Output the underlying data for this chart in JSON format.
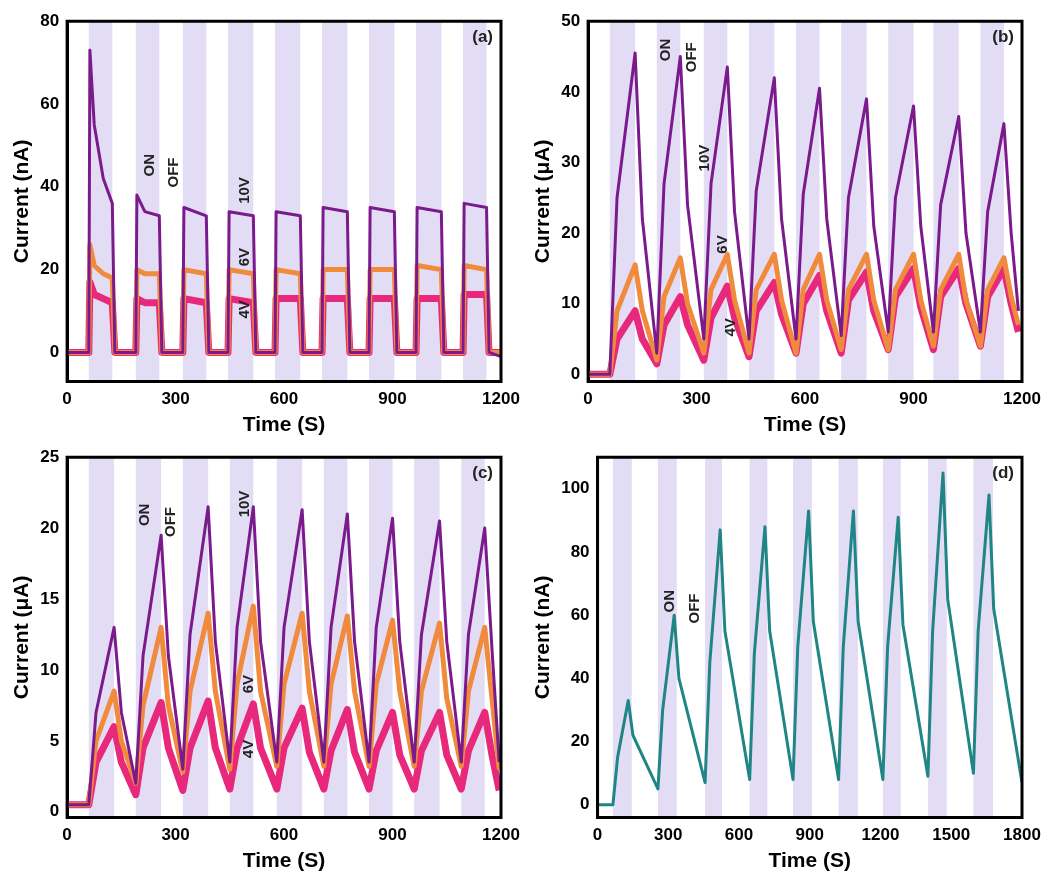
{
  "chart_data": [
    {
      "type": "line",
      "title": "(a)",
      "xlabel": "Time (S)",
      "ylabel": "Current (nA)",
      "xlim": [
        0,
        1200
      ],
      "xticks": [
        0,
        300,
        600,
        900,
        1200
      ],
      "ylim": [
        -7,
        80
      ],
      "yticks": [
        0,
        20,
        40,
        60,
        80
      ],
      "legend": false,
      "x": [
        0,
        60,
        63,
        75,
        100,
        125,
        132,
        190,
        193,
        215,
        255,
        262,
        320,
        323,
        385,
        392,
        445,
        448,
        515,
        522,
        575,
        578,
        645,
        652,
        705,
        708,
        775,
        782,
        835,
        838,
        905,
        912,
        965,
        968,
        1035,
        1042,
        1095,
        1098,
        1160,
        1167,
        1200
      ],
      "series": [
        {
          "name": "10V",
          "color": "#7b1a8c",
          "values": [
            0,
            0,
            73,
            55,
            42,
            36,
            0,
            0,
            38,
            34,
            33,
            0,
            0,
            35,
            33,
            0,
            0,
            34,
            33,
            0,
            0,
            34,
            33,
            0,
            0,
            35,
            34,
            0,
            0,
            35,
            34,
            0,
            0,
            35,
            34,
            0,
            0,
            36,
            35,
            0,
            -1
          ]
        },
        {
          "name": "6V",
          "color": "#f08a3c",
          "values": [
            0,
            0,
            26,
            21,
            19,
            18,
            0,
            0,
            20,
            19,
            19,
            0,
            0,
            20,
            19,
            0,
            0,
            20,
            19,
            0,
            0,
            20,
            19,
            0,
            0,
            20,
            20,
            0,
            0,
            20,
            20,
            0,
            0,
            21,
            20,
            0,
            0,
            21,
            20,
            0,
            0
          ]
        },
        {
          "name": "4V",
          "color": "#e8287a",
          "values": [
            0,
            0,
            17,
            14,
            13,
            12,
            0,
            0,
            13,
            12,
            12,
            0,
            0,
            13,
            12,
            0,
            0,
            13,
            12,
            0,
            0,
            13,
            13,
            0,
            0,
            13,
            13,
            0,
            0,
            13,
            13,
            0,
            0,
            13,
            13,
            0,
            0,
            14,
            14,
            0,
            0
          ]
        }
      ],
      "bands": [
        {
          "axis": "x",
          "from": 60,
          "to": 125,
          "color": "#e3dcf5"
        },
        {
          "axis": "x",
          "from": 190,
          "to": 255,
          "color": "#e3dcf5"
        },
        {
          "axis": "x",
          "from": 320,
          "to": 385,
          "color": "#e3dcf5"
        },
        {
          "axis": "x",
          "from": 445,
          "to": 515,
          "color": "#e3dcf5"
        },
        {
          "axis": "x",
          "from": 575,
          "to": 645,
          "color": "#e3dcf5"
        },
        {
          "axis": "x",
          "from": 705,
          "to": 775,
          "color": "#e3dcf5"
        },
        {
          "axis": "x",
          "from": 835,
          "to": 905,
          "color": "#e3dcf5"
        },
        {
          "axis": "x",
          "from": 965,
          "to": 1035,
          "color": "#e3dcf5"
        },
        {
          "axis": "x",
          "from": 1095,
          "to": 1160,
          "color": "#e3dcf5"
        }
      ],
      "annotations": [
        "ON",
        "OFF"
      ]
    },
    {
      "type": "line",
      "title": "(b)",
      "xlabel": "Time (S)",
      "ylabel": "Current (μA)",
      "xlim": [
        0,
        1200
      ],
      "xticks": [
        0,
        300,
        600,
        900,
        1200
      ],
      "ylim": [
        -1,
        50
      ],
      "yticks": [
        0,
        10,
        20,
        30,
        40,
        50
      ],
      "legend": false,
      "x": [
        0,
        60,
        80,
        130,
        150,
        190,
        210,
        255,
        275,
        320,
        340,
        385,
        405,
        445,
        465,
        515,
        535,
        575,
        595,
        640,
        660,
        700,
        720,
        770,
        790,
        830,
        850,
        900,
        920,
        955,
        975,
        1025,
        1045,
        1085,
        1105,
        1150,
        1170,
        1190
      ],
      "series": [
        {
          "name": "10V",
          "color": "#7b1a8c",
          "values": [
            0,
            0,
            25,
            45.5,
            22,
            3,
            27,
            45,
            24,
            5,
            27,
            43.5,
            23,
            5,
            26,
            42,
            22,
            5,
            25.5,
            40.5,
            22,
            5.5,
            25,
            39,
            21,
            6,
            25,
            38,
            21,
            6,
            24,
            36.5,
            20,
            6,
            23,
            35.5,
            20,
            9
          ]
        },
        {
          "name": "6V",
          "color": "#f08a3c",
          "values": [
            0,
            0,
            9,
            15.5,
            9,
            2,
            11,
            16.5,
            10,
            3,
            12,
            17,
            10.5,
            3,
            12,
            17,
            10.5,
            3,
            12,
            17,
            10.5,
            3.5,
            12,
            17,
            10.5,
            3.5,
            12,
            17,
            10.5,
            4,
            12,
            17,
            10.5,
            4,
            12,
            16.5,
            11,
            7
          ]
        },
        {
          "name": "4V",
          "color": "#e8287a",
          "values": [
            0,
            0,
            5,
            9,
            5,
            1.5,
            7,
            11,
            7,
            2,
            8,
            12.5,
            8,
            2.5,
            9,
            13,
            8.5,
            3,
            10,
            14,
            9,
            3,
            10.5,
            14.5,
            9,
            3.5,
            11,
            15,
            9.5,
            3.5,
            11,
            15,
            10,
            4,
            11,
            15,
            10,
            6
          ]
        }
      ],
      "bands": [
        {
          "axis": "x",
          "from": 60,
          "to": 130,
          "color": "#e3dcf5"
        },
        {
          "axis": "x",
          "from": 190,
          "to": 255,
          "color": "#e3dcf5"
        },
        {
          "axis": "x",
          "from": 320,
          "to": 385,
          "color": "#e3dcf5"
        },
        {
          "axis": "x",
          "from": 445,
          "to": 515,
          "color": "#e3dcf5"
        },
        {
          "axis": "x",
          "from": 575,
          "to": 640,
          "color": "#e3dcf5"
        },
        {
          "axis": "x",
          "from": 700,
          "to": 770,
          "color": "#e3dcf5"
        },
        {
          "axis": "x",
          "from": 830,
          "to": 900,
          "color": "#e3dcf5"
        },
        {
          "axis": "x",
          "from": 955,
          "to": 1025,
          "color": "#e3dcf5"
        },
        {
          "axis": "x",
          "from": 1085,
          "to": 1150,
          "color": "#e3dcf5"
        }
      ],
      "annotations": [
        "ON",
        "OFF"
      ]
    },
    {
      "type": "line",
      "title": "(c)",
      "xlabel": "Time (S)",
      "ylabel": "Current (μA)",
      "xlim": [
        0,
        1200
      ],
      "xticks": [
        0,
        300,
        600,
        900,
        1200
      ],
      "ylim": [
        -0.4,
        25
      ],
      "yticks": [
        0,
        5,
        10,
        15,
        20,
        25
      ],
      "legend": false,
      "x": [
        0,
        60,
        80,
        130,
        150,
        190,
        210,
        260,
        280,
        320,
        340,
        390,
        410,
        450,
        470,
        515,
        535,
        580,
        600,
        650,
        670,
        710,
        730,
        775,
        795,
        835,
        855,
        900,
        920,
        960,
        980,
        1030,
        1050,
        1090,
        1110,
        1155,
        1175,
        1195
      ],
      "series": [
        {
          "name": "10V",
          "color": "#7b1a8c",
          "values": [
            0.5,
            0.5,
            7,
            13,
            7,
            2,
            11,
            19.5,
            11,
            3,
            12.5,
            21.5,
            12,
            3.5,
            13,
            21.5,
            12,
            3.5,
            13,
            21.3,
            12,
            3.5,
            13,
            21,
            12,
            3.5,
            13,
            20.7,
            12,
            3.5,
            12.5,
            20.5,
            12,
            3.5,
            12.5,
            20,
            11.5,
            3.5
          ]
        },
        {
          "name": "6V",
          "color": "#f08a3c",
          "values": [
            0.5,
            0.5,
            5,
            8.5,
            5,
            2,
            7.5,
            13,
            7.5,
            2.8,
            8.5,
            14,
            8.5,
            3,
            9,
            14.5,
            8.5,
            3.2,
            9,
            14,
            8.5,
            3.2,
            9,
            13.8,
            8.5,
            3.2,
            9,
            13.5,
            8.5,
            3.2,
            8.5,
            13.3,
            8,
            3.2,
            8.5,
            13,
            8,
            3
          ]
        },
        {
          "name": "4V",
          "color": "#e8287a",
          "values": [
            0.5,
            0.5,
            3.5,
            6,
            3.5,
            1.2,
            4.5,
            7.7,
            4.5,
            1.5,
            4.5,
            7.8,
            4.5,
            1.6,
            4.5,
            7.6,
            4.5,
            1.6,
            4.5,
            7.3,
            4.2,
            1.6,
            4.3,
            7.2,
            4.2,
            1.6,
            4.3,
            7,
            4,
            1.6,
            4.3,
            7,
            4,
            1.6,
            4.3,
            7,
            4,
            1.5
          ]
        }
      ],
      "bands": [
        {
          "axis": "x",
          "from": 60,
          "to": 130,
          "color": "#e3dcf5"
        },
        {
          "axis": "x",
          "from": 190,
          "to": 260,
          "color": "#e3dcf5"
        },
        {
          "axis": "x",
          "from": 320,
          "to": 390,
          "color": "#e3dcf5"
        },
        {
          "axis": "x",
          "from": 450,
          "to": 515,
          "color": "#e3dcf5"
        },
        {
          "axis": "x",
          "from": 580,
          "to": 650,
          "color": "#e3dcf5"
        },
        {
          "axis": "x",
          "from": 710,
          "to": 775,
          "color": "#e3dcf5"
        },
        {
          "axis": "x",
          "from": 835,
          "to": 900,
          "color": "#e3dcf5"
        },
        {
          "axis": "x",
          "from": 960,
          "to": 1030,
          "color": "#e3dcf5"
        },
        {
          "axis": "x",
          "from": 1090,
          "to": 1155,
          "color": "#e3dcf5"
        }
      ],
      "annotations": [
        "ON",
        "OFF"
      ]
    },
    {
      "type": "line",
      "title": "(d)",
      "xlabel": "Time (S)",
      "ylabel": "Current (nA)",
      "xlim": [
        0,
        1800
      ],
      "xticks": [
        0,
        300,
        600,
        900,
        1200,
        1500,
        1800
      ],
      "ylim": [
        -4,
        110
      ],
      "yticks": [
        0,
        20,
        40,
        60,
        80,
        100
      ],
      "legend": false,
      "x": [
        0,
        65,
        85,
        130,
        150,
        256,
        276,
        325,
        345,
        456,
        476,
        520,
        540,
        645,
        665,
        710,
        730,
        829,
        849,
        895,
        915,
        1022,
        1042,
        1085,
        1105,
        1210,
        1230,
        1275,
        1295,
        1401,
        1421,
        1465,
        1485,
        1594,
        1614,
        1660,
        1680,
        1800
      ],
      "series": [
        {
          "color": "#1f8585",
          "values": [
            0,
            0,
            15,
            33,
            22,
            5,
            30,
            60,
            40,
            7,
            45,
            87,
            55,
            8,
            48,
            88,
            55,
            8,
            50,
            93,
            58,
            8,
            50,
            93,
            58,
            8,
            50,
            91,
            57,
            9,
            55,
            105,
            65,
            10,
            55,
            98,
            62,
            7
          ]
        }
      ],
      "bands": [
        {
          "axis": "x",
          "from": 65,
          "to": 145,
          "color": "#e3dcf5"
        },
        {
          "axis": "x",
          "from": 256,
          "to": 336,
          "color": "#e3dcf5"
        },
        {
          "axis": "x",
          "from": 456,
          "to": 528,
          "color": "#e3dcf5"
        },
        {
          "axis": "x",
          "from": 645,
          "to": 720,
          "color": "#e3dcf5"
        },
        {
          "axis": "x",
          "from": 829,
          "to": 909,
          "color": "#e3dcf5"
        },
        {
          "axis": "x",
          "from": 1022,
          "to": 1104,
          "color": "#e3dcf5"
        },
        {
          "axis": "x",
          "from": 1210,
          "to": 1286,
          "color": "#e3dcf5"
        },
        {
          "axis": "x",
          "from": 1401,
          "to": 1481,
          "color": "#e3dcf5"
        },
        {
          "axis": "x",
          "from": 1594,
          "to": 1677,
          "color": "#e3dcf5"
        }
      ],
      "annotations": [
        "ON",
        "OFF"
      ]
    }
  ]
}
